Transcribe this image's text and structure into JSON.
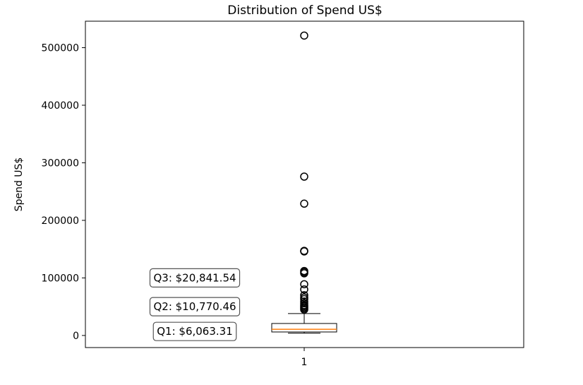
{
  "chart_data": {
    "type": "box",
    "title": "Distribution of Spend US$",
    "xlabel": "",
    "ylabel": "Spend US$",
    "x_categories": [
      "1"
    ],
    "yticks": [
      0,
      100000,
      200000,
      300000,
      400000,
      500000
    ],
    "ytick_labels": [
      "0",
      "100000",
      "200000",
      "300000",
      "400000",
      "500000"
    ],
    "ylim": [
      -21000,
      546000
    ],
    "grid": false,
    "box": {
      "category": "1",
      "q1": 6063.31,
      "median": 10770.46,
      "q3": 20841.54,
      "whisker_low": 4000,
      "whisker_high": 38000,
      "outliers": [
        521000,
        276000,
        229000,
        147000,
        146000,
        112000,
        110000,
        108000,
        89000,
        80000,
        70000,
        66000,
        63000,
        59000,
        56000,
        53000,
        51000,
        49000,
        47000,
        45000
      ]
    },
    "annotations": [
      {
        "label": "Q3: $20,841.54",
        "y": 100000
      },
      {
        "label": "Q2: $10,770.46",
        "y": 50000
      },
      {
        "label": "Q1: $6,063.31",
        "y": 7000
      }
    ],
    "colors": {
      "box": "#000000",
      "median": "#ff7f0e",
      "outlier": "#000000",
      "annotation_border": "#555555"
    }
  }
}
